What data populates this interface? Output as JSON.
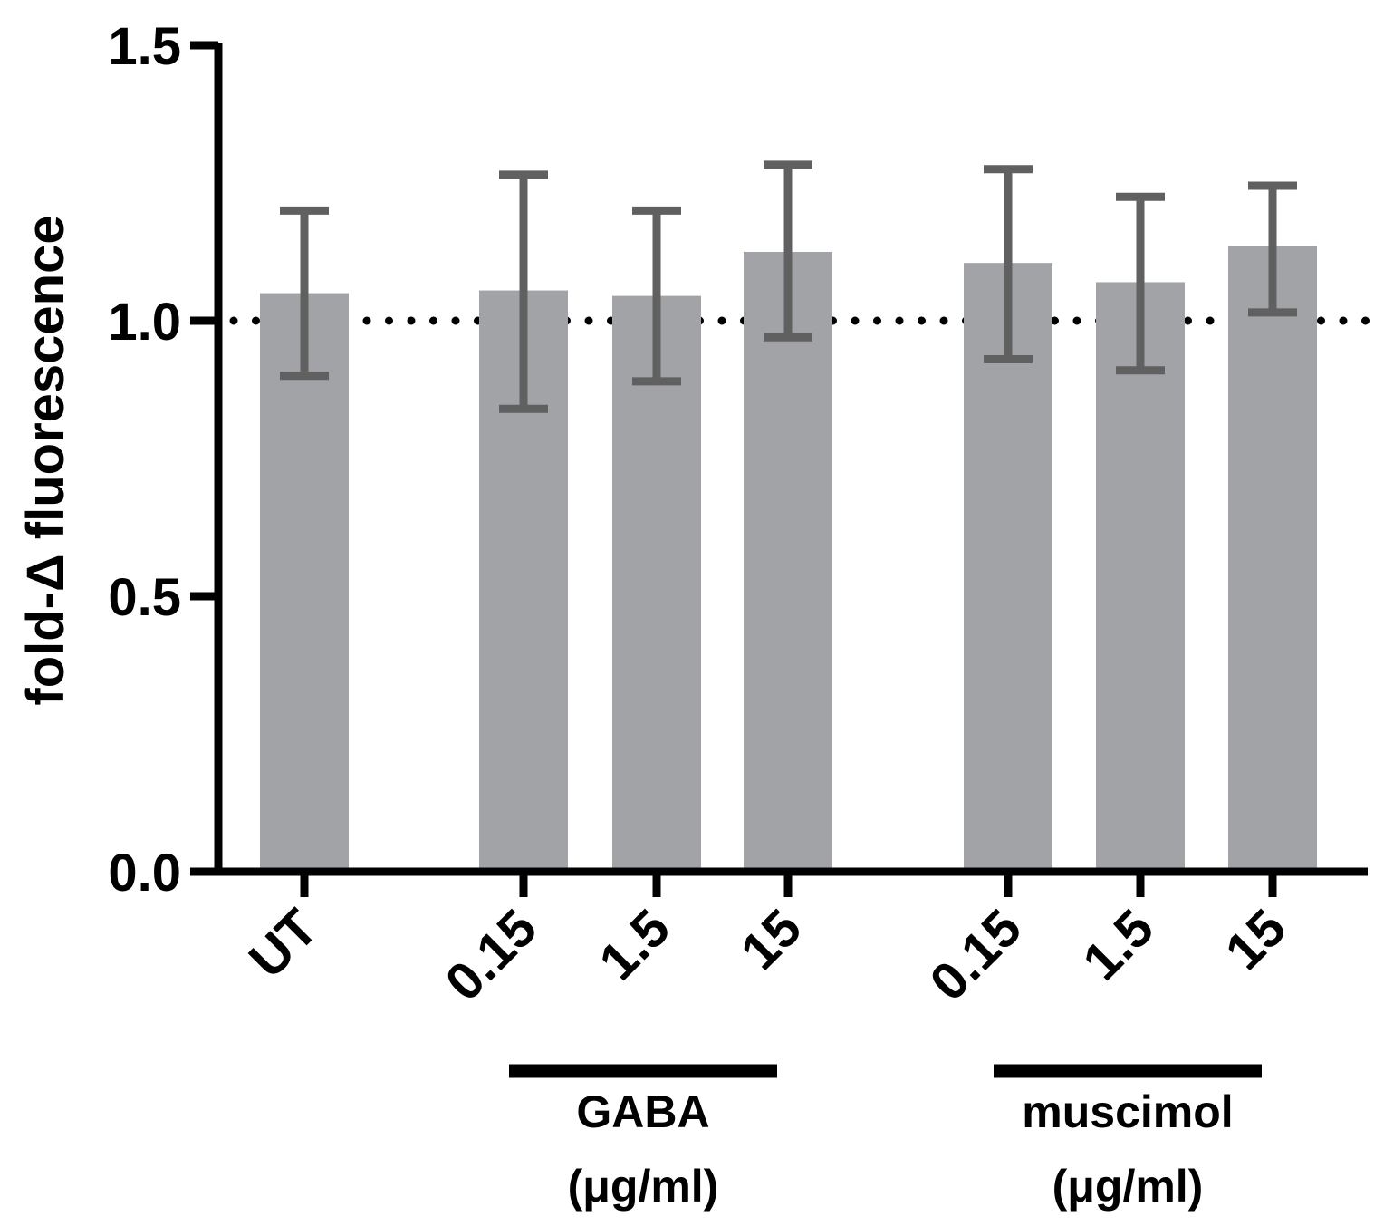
{
  "chart_data": {
    "type": "bar",
    "title": "",
    "xlabel": "",
    "ylabel": "fold-Δ fluorescence",
    "ylim": [
      0,
      1.5
    ],
    "yticks": [
      "0.0",
      "0.5",
      "1.0",
      "1.5"
    ],
    "reference_line": {
      "y": 1.0,
      "style": "dotted"
    },
    "bar_color": "#a2a3a6",
    "error_color": "#606060",
    "bars": [
      {
        "label": "UT",
        "value": 1.05,
        "err_low": 0.9,
        "err_high": 1.2
      },
      {
        "label": "0.15",
        "value": 1.055,
        "err_low": 0.84,
        "err_high": 1.265
      },
      {
        "label": "1.5",
        "value": 1.045,
        "err_low": 0.89,
        "err_high": 1.2
      },
      {
        "label": "15",
        "value": 1.125,
        "err_low": 0.97,
        "err_high": 1.283
      },
      {
        "label": "0.15",
        "value": 1.105,
        "err_low": 0.93,
        "err_high": 1.275
      },
      {
        "label": "1.5",
        "value": 1.07,
        "err_low": 0.91,
        "err_high": 1.225
      },
      {
        "label": "15",
        "value": 1.135,
        "err_low": 1.015,
        "err_high": 1.245
      }
    ],
    "groups": [
      {
        "name": "GABA",
        "unit": "(μg/ml)",
        "bars": [
          1,
          2,
          3
        ]
      },
      {
        "name": "muscimol",
        "unit": "(μg/ml)",
        "bars": [
          4,
          5,
          6
        ]
      }
    ]
  }
}
